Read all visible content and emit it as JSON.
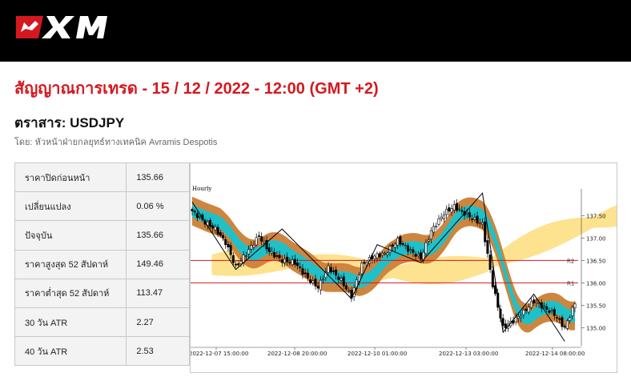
{
  "header": {
    "brand": "XM",
    "colors": {
      "bar": "#000000",
      "accent": "#d51820"
    }
  },
  "title": "สัญญาณการเทรด - 15 / 12 / 2022 - 12:00 (GMT +2)",
  "instrument": "ตราสาร: USDJPY",
  "author": "โดย: หัวหน้าฝ่ายกลยุทธ์ทางเทคนิค Avramis Despotis",
  "stats": [
    {
      "label": "ราคาปิดก่อนหน้า",
      "value": "135.66"
    },
    {
      "label": "เปลี่ยนแปลง",
      "value": "0.06 %"
    },
    {
      "label": "ปัจจุบัน",
      "value": "135.66"
    },
    {
      "label": "ราคาสูงสุด 52 สัปดาห์",
      "value": "149.46"
    },
    {
      "label": "ราคาต่ำสุด 52 สัปดาห์",
      "value": "113.47"
    },
    {
      "label": "30 วัน ATR",
      "value": "2.27"
    },
    {
      "label": "40 วัน ATR",
      "value": "2.53"
    }
  ],
  "chart_data": {
    "type": "candlestick",
    "timeframe": "Hourly",
    "y_ticks": [
      "137.50",
      "137.00",
      "136.50",
      "136.00",
      "135.50",
      "135.00"
    ],
    "y_range": [
      134.6,
      137.95
    ],
    "x_ticks": [
      "2022-12-07 15:00:00",
      "2022-12-08 20:00:00",
      "2022-12-10 01:00:00",
      "2022-12-13 03:00:00",
      "2022-12-14 08:00:00"
    ],
    "levels": [
      {
        "name": "R2",
        "value": 136.5
      },
      {
        "name": "R1",
        "value": 136.0
      }
    ],
    "colors": {
      "band_outer": "#cd853f",
      "band_inner": "#20c0c8",
      "cloud": "#fde08a",
      "level": "#d51820",
      "candle": "#000000"
    },
    "close_path": [
      [
        0,
        137.6
      ],
      [
        5,
        137.35
      ],
      [
        9,
        137.2
      ],
      [
        13,
        136.9
      ],
      [
        17,
        136.35
      ],
      [
        21,
        136.65
      ],
      [
        26,
        137.05
      ],
      [
        30,
        136.7
      ],
      [
        35,
        136.5
      ],
      [
        40,
        136.45
      ],
      [
        45,
        136.1
      ],
      [
        49,
        135.9
      ],
      [
        53,
        136.35
      ],
      [
        58,
        136.05
      ],
      [
        62,
        135.7
      ],
      [
        66,
        136.4
      ],
      [
        71,
        136.6
      ],
      [
        75,
        136.65
      ],
      [
        80,
        136.95
      ],
      [
        84,
        136.75
      ],
      [
        89,
        136.55
      ],
      [
        93,
        137.15
      ],
      [
        98,
        137.55
      ],
      [
        102,
        137.7
      ],
      [
        106,
        137.55
      ],
      [
        110,
        137.4
      ],
      [
        113,
        137.3
      ],
      [
        117,
        135.95
      ],
      [
        121,
        135.0
      ],
      [
        125,
        135.15
      ],
      [
        129,
        135.35
      ],
      [
        133,
        135.6
      ],
      [
        137,
        135.45
      ],
      [
        141,
        135.3
      ],
      [
        145,
        135.0
      ],
      [
        149,
        135.55
      ]
    ]
  }
}
